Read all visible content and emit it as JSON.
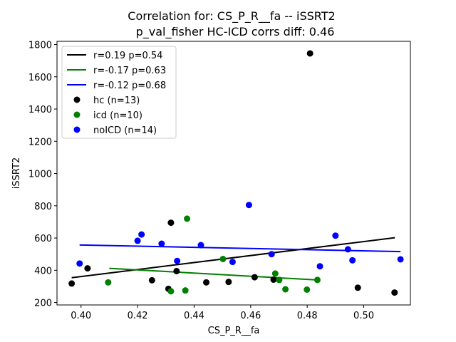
{
  "chart_data": {
    "type": "scatter",
    "title_line1": "Correlation for: CS_P_R__fa -- iSSRT2",
    "title_line2": "p_val_fisher HC-ICD corrs diff: 0.46",
    "xlabel": "CS_P_R__fa",
    "ylabel": "iSSRT2",
    "xlim": [
      0.3915,
      0.5165
    ],
    "ylim": [
      185,
      1820
    ],
    "xticks": [
      0.4,
      0.42,
      0.44,
      0.46,
      0.48,
      0.5
    ],
    "xtick_labels": [
      "0.40",
      "0.42",
      "0.44",
      "0.46",
      "0.48",
      "0.50"
    ],
    "yticks": [
      200,
      400,
      600,
      800,
      1000,
      1200,
      1400,
      1600,
      1800
    ],
    "ytick_labels": [
      "200",
      "400",
      "600",
      "800",
      "1000",
      "1200",
      "1400",
      "1600",
      "1800"
    ],
    "grid": false,
    "legend_position": "top-left",
    "fit_lines": [
      {
        "label": "r=0.19 p=0.54",
        "color": "#000000",
        "x": [
          0.3967,
          0.511
        ],
        "y": [
          354,
          602
        ]
      },
      {
        "label": "r=-0.17 p=0.63",
        "color": "#008000",
        "x": [
          0.41,
          0.4835
        ],
        "y": [
          412,
          340
        ]
      },
      {
        "label": "r=-0.12 p=0.68",
        "color": "#0000ff",
        "x": [
          0.3995,
          0.513
        ],
        "y": [
          557,
          516
        ]
      }
    ],
    "series": [
      {
        "name": "hc (n=13)",
        "color": "#000000",
        "points": [
          [
            0.3967,
            318
          ],
          [
            0.4023,
            412
          ],
          [
            0.4251,
            338
          ],
          [
            0.4309,
            285
          ],
          [
            0.4318,
            695
          ],
          [
            0.4338,
            395
          ],
          [
            0.4443,
            325
          ],
          [
            0.4522,
            328
          ],
          [
            0.4614,
            357
          ],
          [
            0.4681,
            342
          ],
          [
            0.481,
            1745
          ],
          [
            0.4979,
            292
          ],
          [
            0.5109,
            262
          ]
        ]
      },
      {
        "name": "icd (n=10)",
        "color": "#008000",
        "points": [
          [
            0.4096,
            325
          ],
          [
            0.4318,
            270
          ],
          [
            0.4369,
            275
          ],
          [
            0.4375,
            720
          ],
          [
            0.4502,
            470
          ],
          [
            0.4687,
            380
          ],
          [
            0.4701,
            340
          ],
          [
            0.4723,
            282
          ],
          [
            0.4799,
            280
          ],
          [
            0.4836,
            340
          ]
        ]
      },
      {
        "name": "noICD (n=14)",
        "color": "#0000ff",
        "points": [
          [
            0.3995,
            442
          ],
          [
            0.42,
            583
          ],
          [
            0.4214,
            622
          ],
          [
            0.4285,
            565
          ],
          [
            0.434,
            458
          ],
          [
            0.4424,
            556
          ],
          [
            0.4536,
            452
          ],
          [
            0.4594,
            805
          ],
          [
            0.4674,
            500
          ],
          [
            0.4845,
            425
          ],
          [
            0.49,
            615
          ],
          [
            0.4944,
            530
          ],
          [
            0.496,
            462
          ],
          [
            0.513,
            468
          ]
        ]
      }
    ]
  }
}
